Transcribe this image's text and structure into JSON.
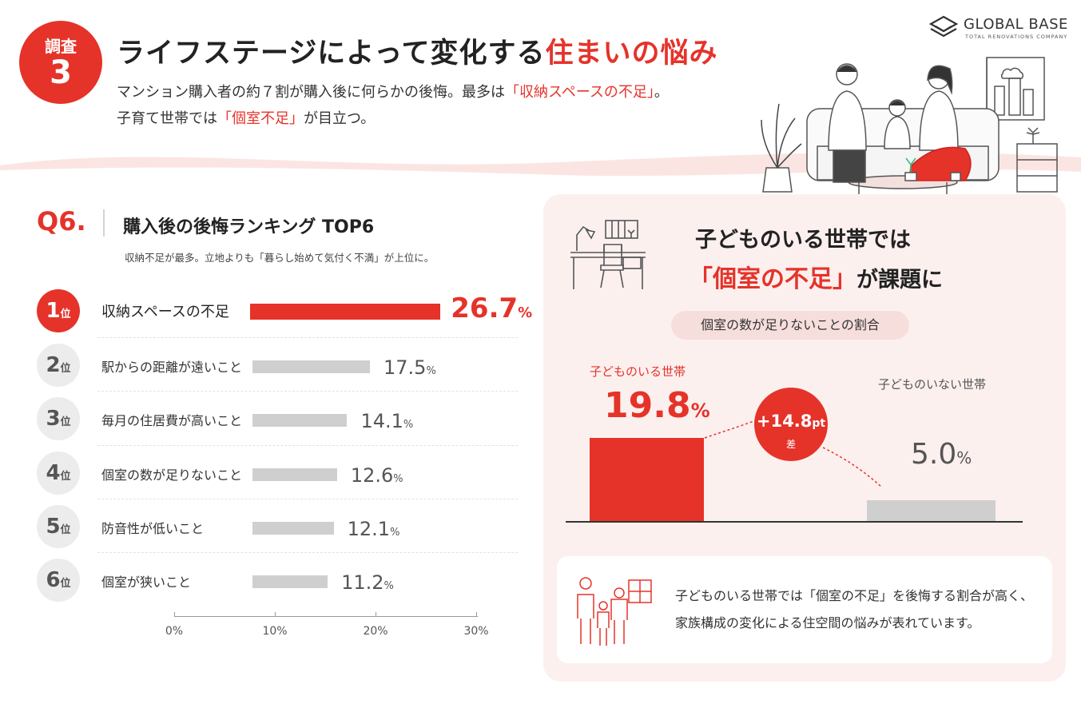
{
  "header": {
    "badge_top": "調査",
    "badge_num": "3",
    "title_main": "ライフステージによって変化する",
    "title_accent": "住まいの悩み",
    "lead1_a": "マンション購入者の約７割が購入後に何らかの後悔。最多は",
    "lead1_b": "「収納スペースの不足」",
    "lead1_c": "。",
    "lead2_a": "子育て世帯では",
    "lead2_b": "「個室不足」",
    "lead2_c": "が目立つ。"
  },
  "logo": {
    "name": "GLOBAL BASE",
    "tagline": "TOTAL RENOVATIONS COMPANY"
  },
  "ranking": {
    "q_label": "Q6.",
    "title": "購入後の後悔ランキング TOP6",
    "subtitle": "収納不足が最多。立地よりも「暮らし始めて気付く不満」が上位に。",
    "rank_suffix": "位",
    "pct_unit": "%",
    "items": [
      {
        "rank": "1",
        "label": "収納スペースの不足",
        "value_text": "26.7"
      },
      {
        "rank": "2",
        "label": "駅からの距離が遠いこと",
        "value_text": "17.5"
      },
      {
        "rank": "3",
        "label": "毎月の住居費が高いこと",
        "value_text": "14.1"
      },
      {
        "rank": "4",
        "label": "個室の数が足りないこと",
        "value_text": "12.6"
      },
      {
        "rank": "5",
        "label": "防音性が低いこと",
        "value_text": "12.1"
      },
      {
        "rank": "6",
        "label": "個室が狭いこと",
        "value_text": "11.2"
      }
    ],
    "axis_ticks": [
      "0%",
      "10%",
      "20%",
      "30%"
    ]
  },
  "comparison": {
    "heading1": "子どものいる世帯では",
    "heading2_accent": "「個室の不足」",
    "heading2_rest": "が課題に",
    "pill": "個室の数が足りないことの割合",
    "with_children_label": "子どものいる世帯",
    "with_children_value": "19.8",
    "without_children_label": "子どものいない世帯",
    "without_children_value": "5.0",
    "pct_unit": "%",
    "diff_value": "+14.8",
    "diff_unit": "pt",
    "diff_label": "差",
    "note1": "子どものいる世帯では「個室の不足」を後悔する割合が高く、",
    "note2": "家族構成の変化による住空間の悩みが表れています。"
  },
  "colors": {
    "accent": "#e5332a",
    "bar_gray": "#cfcfcf",
    "panel_bg": "#fcf0ef"
  },
  "chart_data": [
    {
      "type": "bar",
      "orientation": "horizontal",
      "title": "購入後の後悔ランキング TOP6",
      "categories": [
        "収納スペースの不足",
        "駅からの距離が遠いこと",
        "毎月の住居費が高いこと",
        "個室の数が足りないこと",
        "防音性が低いこと",
        "個室が狭いこと"
      ],
      "values": [
        26.7,
        17.5,
        14.1,
        12.6,
        12.1,
        11.2
      ],
      "xlim": [
        0,
        30
      ],
      "xticks": [
        "0%",
        "10%",
        "20%",
        "30%"
      ]
    },
    {
      "type": "bar",
      "title": "個室の数が足りないことの割合",
      "categories": [
        "子どものいる世帯",
        "子どものいない世帯"
      ],
      "values": [
        19.8,
        5.0
      ],
      "annotation": "+14.8pt 差"
    }
  ]
}
